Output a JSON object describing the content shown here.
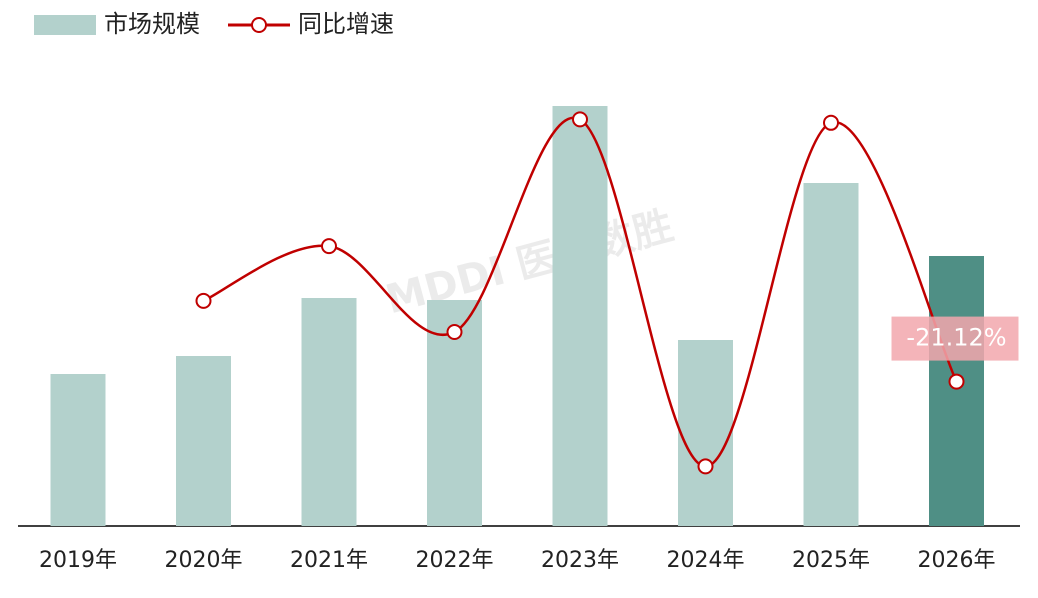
{
  "chart_data": {
    "type": "combo",
    "categories": [
      "2019年",
      "2020年",
      "2021年",
      "2022年",
      "2023年",
      "2024年",
      "2025年",
      "2026年"
    ],
    "series": [
      {
        "name": "市场规模",
        "type": "bar",
        "color": "#b3d1cc",
        "colors": [
          "#b3d1cc",
          "#b3d1cc",
          "#b3d1cc",
          "#b3d1cc",
          "#b3d1cc",
          "#b3d1cc",
          "#b3d1cc",
          "#4f8f85"
        ],
        "values": [
          152,
          170,
          228,
          226,
          420,
          186,
          343,
          270
        ]
      },
      {
        "name": "同比增速",
        "type": "line",
        "axis": "y2",
        "color": "#c00000",
        "values": [
          null,
          11.8,
          34.1,
          -0.9,
          85.8,
          -55.7,
          84.4,
          -21.12
        ],
        "value_labels": [
          null,
          null,
          null,
          null,
          null,
          null,
          null,
          "-21.12%"
        ],
        "label_color": "#f2a7ad"
      }
    ],
    "ylim": [
      0,
      466
    ],
    "y2lim": [
      -80,
      110
    ],
    "legend": "top-left",
    "watermark": "MDDI 医装数胜"
  }
}
